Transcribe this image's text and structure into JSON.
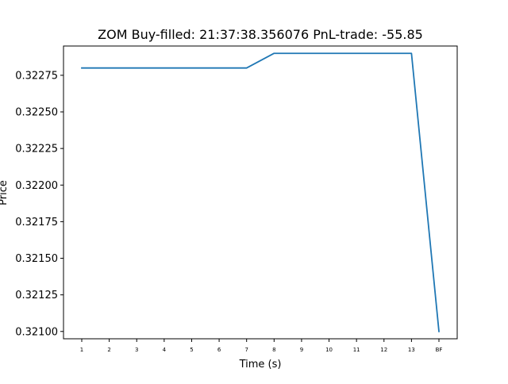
{
  "chart_data": {
    "type": "line",
    "title": "ZOM  Buy-filled:  21:37:38.356076  PnL-trade:  -55.85",
    "xlabel": "Time (s)",
    "ylabel": "Price",
    "categories": [
      "1",
      "2",
      "3",
      "4",
      "5",
      "6",
      "7",
      "8",
      "9",
      "10",
      "11",
      "12",
      "13",
      "BF"
    ],
    "series": [
      {
        "values": [
          0.3228,
          0.3228,
          0.3228,
          0.3228,
          0.3228,
          0.3228,
          0.3228,
          0.3229,
          0.3229,
          0.3229,
          0.3229,
          0.3229,
          0.3229,
          0.321
        ],
        "color": "#1f77b4"
      }
    ],
    "ylim": [
      0.32095,
      0.32295
    ],
    "yticks": [
      0.321,
      0.32125,
      0.3215,
      0.32175,
      0.322,
      0.32225,
      0.3225,
      0.32275
    ],
    "ytick_labels": [
      "0.32100",
      "0.32125",
      "0.32150",
      "0.32175",
      "0.32200",
      "0.32225",
      "0.32250",
      "0.32275"
    ],
    "grid": false,
    "legend": "none"
  }
}
